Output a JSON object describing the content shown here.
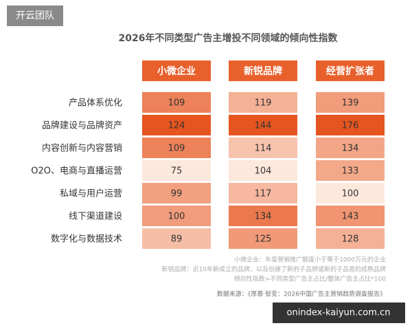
{
  "chart_data": {
    "type": "heatmap",
    "watermark": "开云团队",
    "title": "2026年不同类型广告主增投不同领域的倾向性指数",
    "categories": [
      "产品体系优化",
      "品牌建设与品牌资产",
      "内容创新与内容营销",
      "O2O、电商与直播运营",
      "私域与用户运营",
      "线下渠道建设",
      "数字化与数据技术"
    ],
    "series": [
      {
        "name": "小微企业",
        "values": [
          109,
          124,
          109,
          75,
          99,
          100,
          89
        ]
      },
      {
        "name": "新锐品牌",
        "values": [
          119,
          144,
          114,
          104,
          117,
          134,
          125
        ]
      },
      {
        "name": "经营扩张者",
        "values": [
          139,
          176,
          134,
          133,
          100,
          143,
          128
        ]
      }
    ],
    "header_color": "#e8602c",
    "colorscale": [
      "#fde8dc",
      "#e6541f"
    ],
    "notes": [
      "小微企业：年度营销推广额度小于等于1000万元的企业",
      "新锐品牌：近10年新成立的品牌，以及创建了新的子品牌或新的子品类的成熟品牌",
      "倾向性指数=不同类型广告主占比/整体广告主占比*100"
    ],
    "source": "数据来源：《厚慕·智变：2026中国广告主营销趋势调查报告》",
    "site": "onindex-kaiyun.com.cn"
  }
}
